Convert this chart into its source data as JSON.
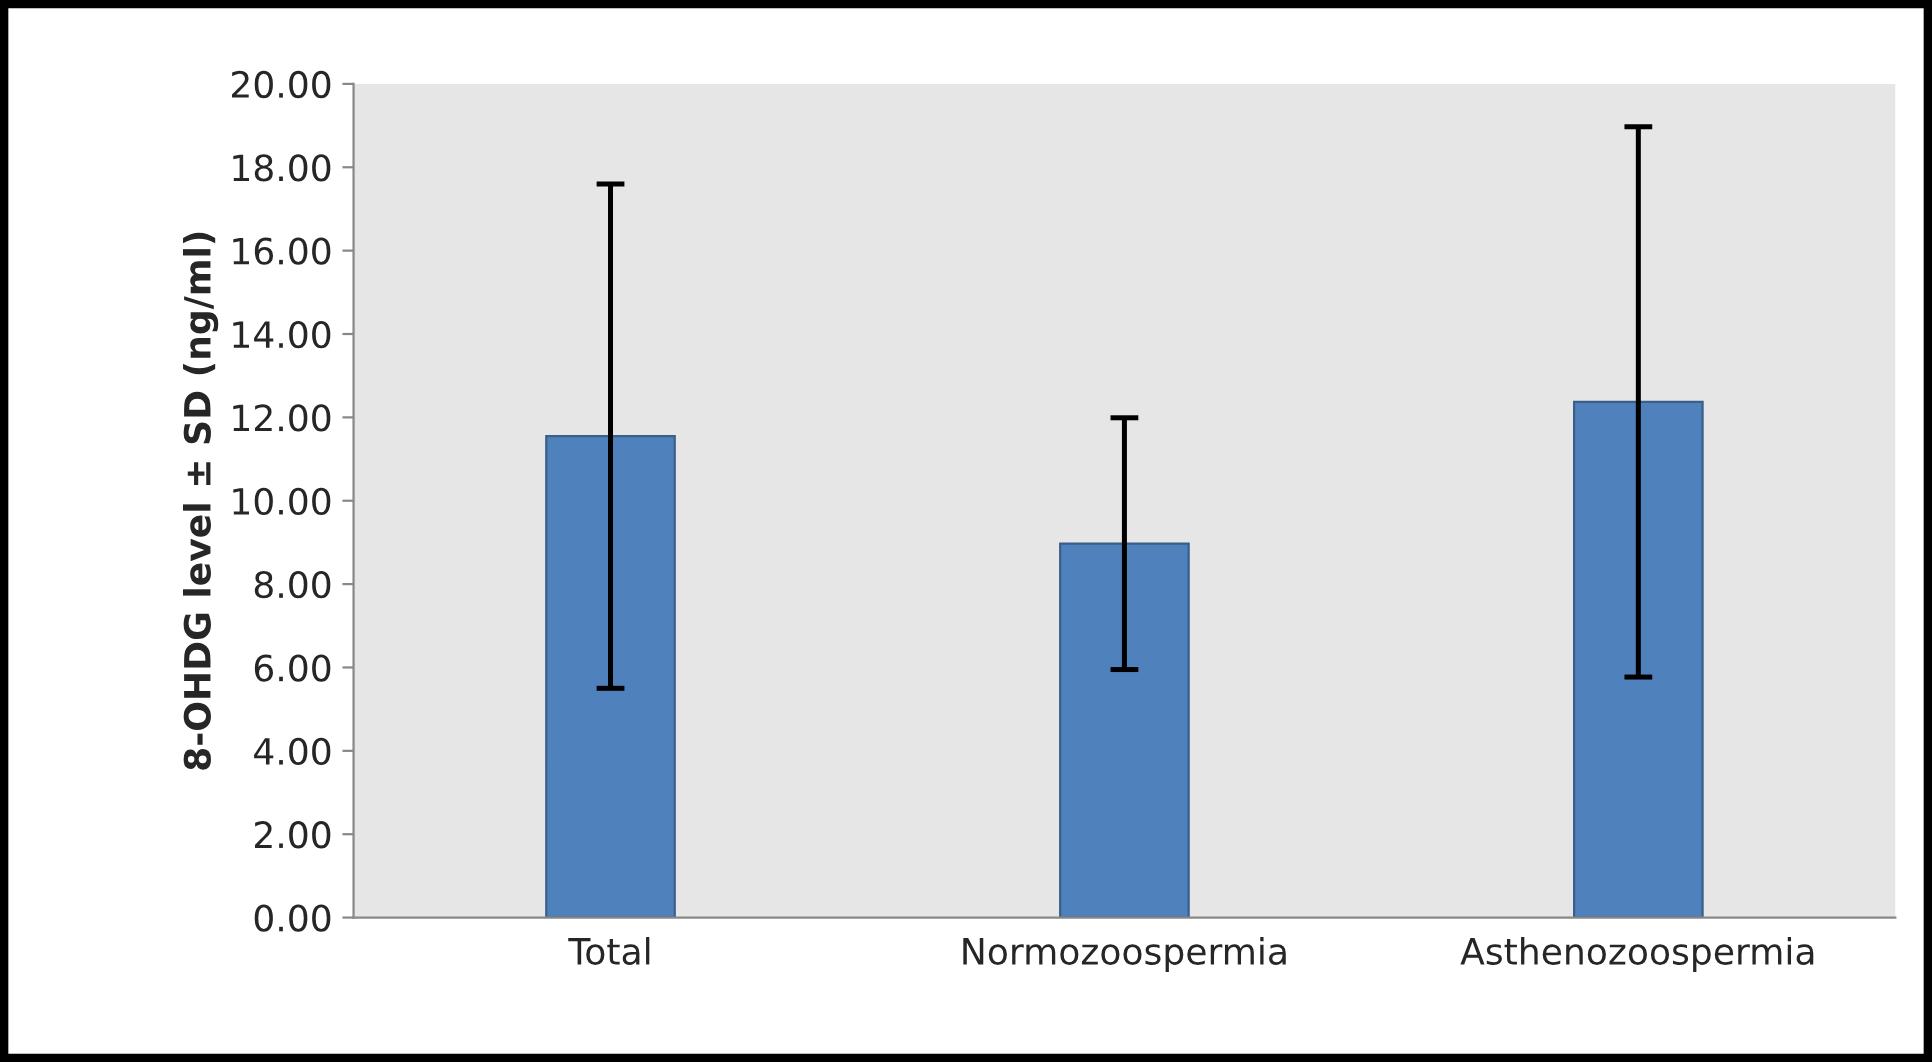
{
  "chart_data": {
    "type": "bar",
    "ylabel": "8-OHDG level ± SD (ng/ml)",
    "categories": [
      "Total",
      "Normozoospermia",
      "Asthenozoospermia"
    ],
    "values": [
      11.55,
      8.97,
      12.37
    ],
    "errors": [
      6.05,
      3.02,
      6.6
    ],
    "color": "#4f81bd",
    "ylim": [
      0,
      20
    ],
    "yticks": [
      {
        "value": 0,
        "label": "0.00"
      },
      {
        "value": 2,
        "label": "2.00"
      },
      {
        "value": 4,
        "label": "4.00"
      },
      {
        "value": 6,
        "label": "6.00"
      },
      {
        "value": 8,
        "label": "8.00"
      },
      {
        "value": 10,
        "label": "10.00"
      },
      {
        "value": 12,
        "label": "12.00"
      },
      {
        "value": 14,
        "label": "14.00"
      },
      {
        "value": 16,
        "label": "16.00"
      },
      {
        "value": 18,
        "label": "18.00"
      },
      {
        "value": 20,
        "label": "20.00"
      }
    ],
    "grid": false
  }
}
